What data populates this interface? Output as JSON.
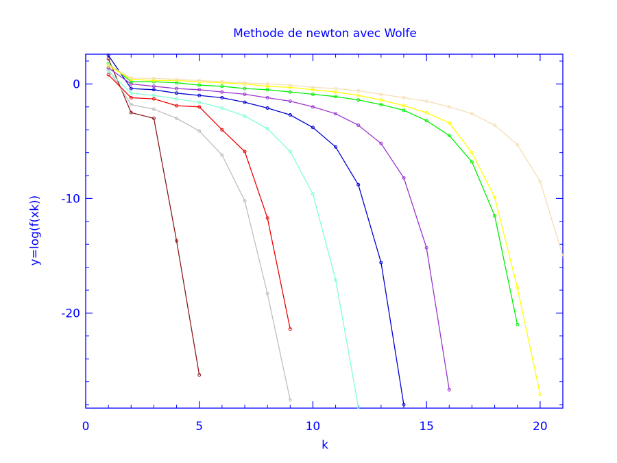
{
  "chart_data": {
    "type": "line",
    "title": "Methode de newton avec Wolfe",
    "xlabel": "k",
    "ylabel": "y=log(f(xk))",
    "xlim": [
      0,
      21
    ],
    "ylim": [
      -28.3,
      2.6
    ],
    "xticks": [
      0,
      5,
      10,
      15,
      20
    ],
    "yticks": [
      0,
      -10,
      -20
    ],
    "xtick_labels": [
      "0",
      "5",
      "10",
      "15",
      "20"
    ],
    "ytick_labels": [
      "0",
      "-10",
      "-20"
    ],
    "grid": false,
    "axis_color": "#0000ff",
    "series": [
      {
        "color": "#8b1a1a",
        "x": [
          1,
          2,
          3,
          4,
          5
        ],
        "y": [
          2.2,
          -2.5,
          -3.0,
          -13.7,
          -25.4
        ]
      },
      {
        "color": "#bebebe",
        "x": [
          1,
          2,
          3,
          4,
          5,
          6,
          7,
          8,
          9
        ],
        "y": [
          1.3,
          -1.8,
          -2.2,
          -3.0,
          -4.1,
          -6.2,
          -10.2,
          -18.3,
          -27.6
        ]
      },
      {
        "color": "#ee0000",
        "x": [
          1,
          2,
          3,
          4,
          5,
          6,
          7,
          8,
          9
        ],
        "y": [
          0.8,
          -1.2,
          -1.3,
          -1.9,
          -2.0,
          -4.0,
          -5.9,
          -11.7,
          -21.4
        ]
      },
      {
        "color": "#7fffd4",
        "x": [
          1,
          2,
          3,
          4,
          5,
          6,
          7,
          8,
          9,
          10,
          11,
          12
        ],
        "y": [
          1.1,
          -0.8,
          -1.0,
          -1.3,
          -1.6,
          -2.1,
          -2.8,
          -3.9,
          -5.9,
          -9.6,
          -17.1,
          -28.2
        ]
      },
      {
        "color": "#0000cd",
        "x": [
          1,
          2,
          3,
          4,
          5,
          6,
          7,
          8,
          9,
          10,
          11,
          12,
          13,
          14
        ],
        "y": [
          2.5,
          -0.4,
          -0.5,
          -0.8,
          -1.0,
          -1.2,
          -1.6,
          -2.1,
          -2.7,
          -3.8,
          -5.5,
          -8.8,
          -15.6,
          -28.0
        ]
      },
      {
        "color": "#9932cc",
        "x": [
          1,
          2,
          3,
          4,
          5,
          6,
          7,
          8,
          9,
          10,
          11,
          12,
          13,
          14,
          15,
          16
        ],
        "y": [
          1.4,
          0.0,
          -0.2,
          -0.4,
          -0.5,
          -0.7,
          -0.9,
          -1.2,
          -1.5,
          -2.0,
          -2.6,
          -3.6,
          -5.2,
          -8.2,
          -14.3,
          -26.7
        ]
      },
      {
        "color": "#00ee00",
        "x": [
          1,
          2,
          3,
          4,
          5,
          6,
          7,
          8,
          9,
          10,
          11,
          12,
          13,
          14,
          15,
          16,
          17,
          18,
          19
        ],
        "y": [
          1.8,
          0.2,
          0.2,
          0.1,
          -0.1,
          -0.2,
          -0.4,
          -0.5,
          -0.7,
          -0.9,
          -1.1,
          -1.4,
          -1.8,
          -2.3,
          -3.2,
          -4.5,
          -6.8,
          -11.5,
          -21.0
        ]
      },
      {
        "color": "#ffff00",
        "x": [
          1,
          2,
          3,
          4,
          5,
          6,
          7,
          8,
          9,
          10,
          11,
          12,
          13,
          14,
          15,
          16,
          17,
          18,
          19,
          20
        ],
        "y": [
          1.6,
          0.4,
          0.3,
          0.3,
          0.2,
          0.1,
          0.0,
          -0.2,
          -0.3,
          -0.5,
          -0.7,
          -1.0,
          -1.4,
          -1.9,
          -2.5,
          -3.4,
          -6.0,
          -9.9,
          -17.8,
          -27.1
        ]
      },
      {
        "color": "#f5deb3",
        "x": [
          1,
          2,
          3,
          4,
          5,
          6,
          7,
          8,
          9,
          10,
          11,
          12,
          13,
          14,
          15,
          16,
          17,
          18,
          19,
          20,
          21
        ],
        "y": [
          1.7,
          0.5,
          0.5,
          0.4,
          0.3,
          0.2,
          0.1,
          0.0,
          -0.1,
          -0.3,
          -0.4,
          -0.6,
          -0.9,
          -1.2,
          -1.5,
          -2.0,
          -2.6,
          -3.6,
          -5.3,
          -8.5,
          -15.0
        ]
      }
    ]
  }
}
